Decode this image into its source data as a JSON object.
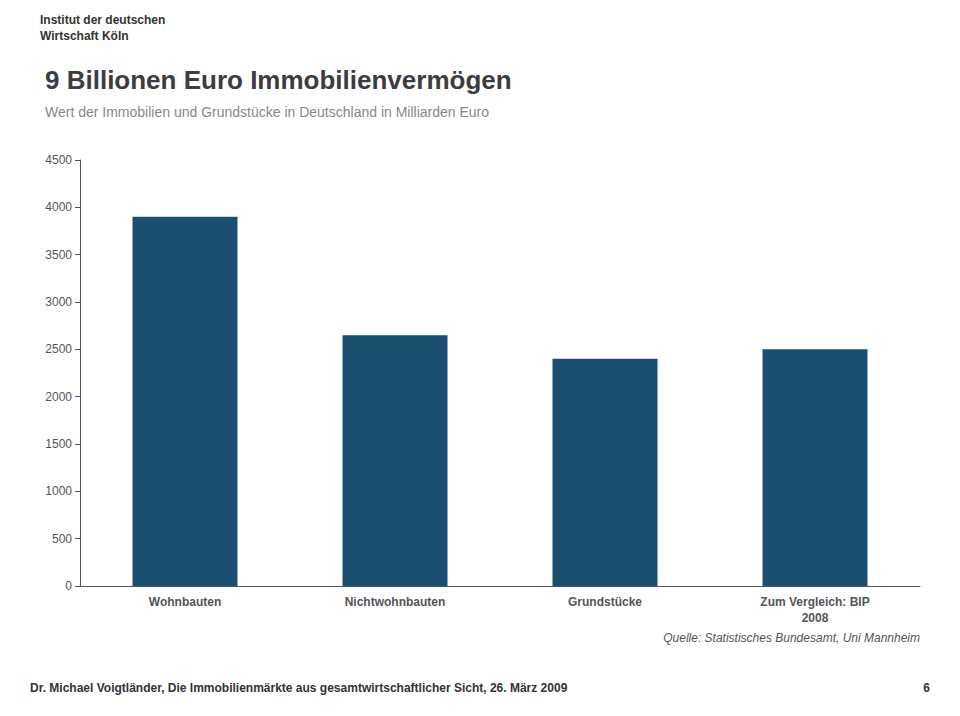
{
  "chart_data": {
    "type": "bar",
    "title": "9 Billionen Euro Immobilienvermögen",
    "subtitle": "Wert der Immobilien und Grundstücke in Deutschland in Milliarden Euro",
    "logo_text": "Institut der deutschen\nWirtschaft Köln",
    "source": "Quelle: Statistisches Bundesamt, Uni Mannheim",
    "footer": "Dr. Michael Voigtländer, Die Immobilienmärkte aus gesamtwirtschaftlicher Sicht, 26. März 2009",
    "page_number": "6",
    "categories": [
      "Wohnbauten",
      "Nichtwohnbauten",
      "Grundstücke",
      "Zum Vergleich: BIP\n2008"
    ],
    "values": [
      3900,
      2650,
      2400,
      2500
    ],
    "color": "#1b4f72",
    "ylim": [
      0,
      4500
    ],
    "yticks": [
      0,
      500,
      1000,
      1500,
      2000,
      2500,
      3000,
      3500,
      4000,
      4500
    ],
    "grid": false
  }
}
